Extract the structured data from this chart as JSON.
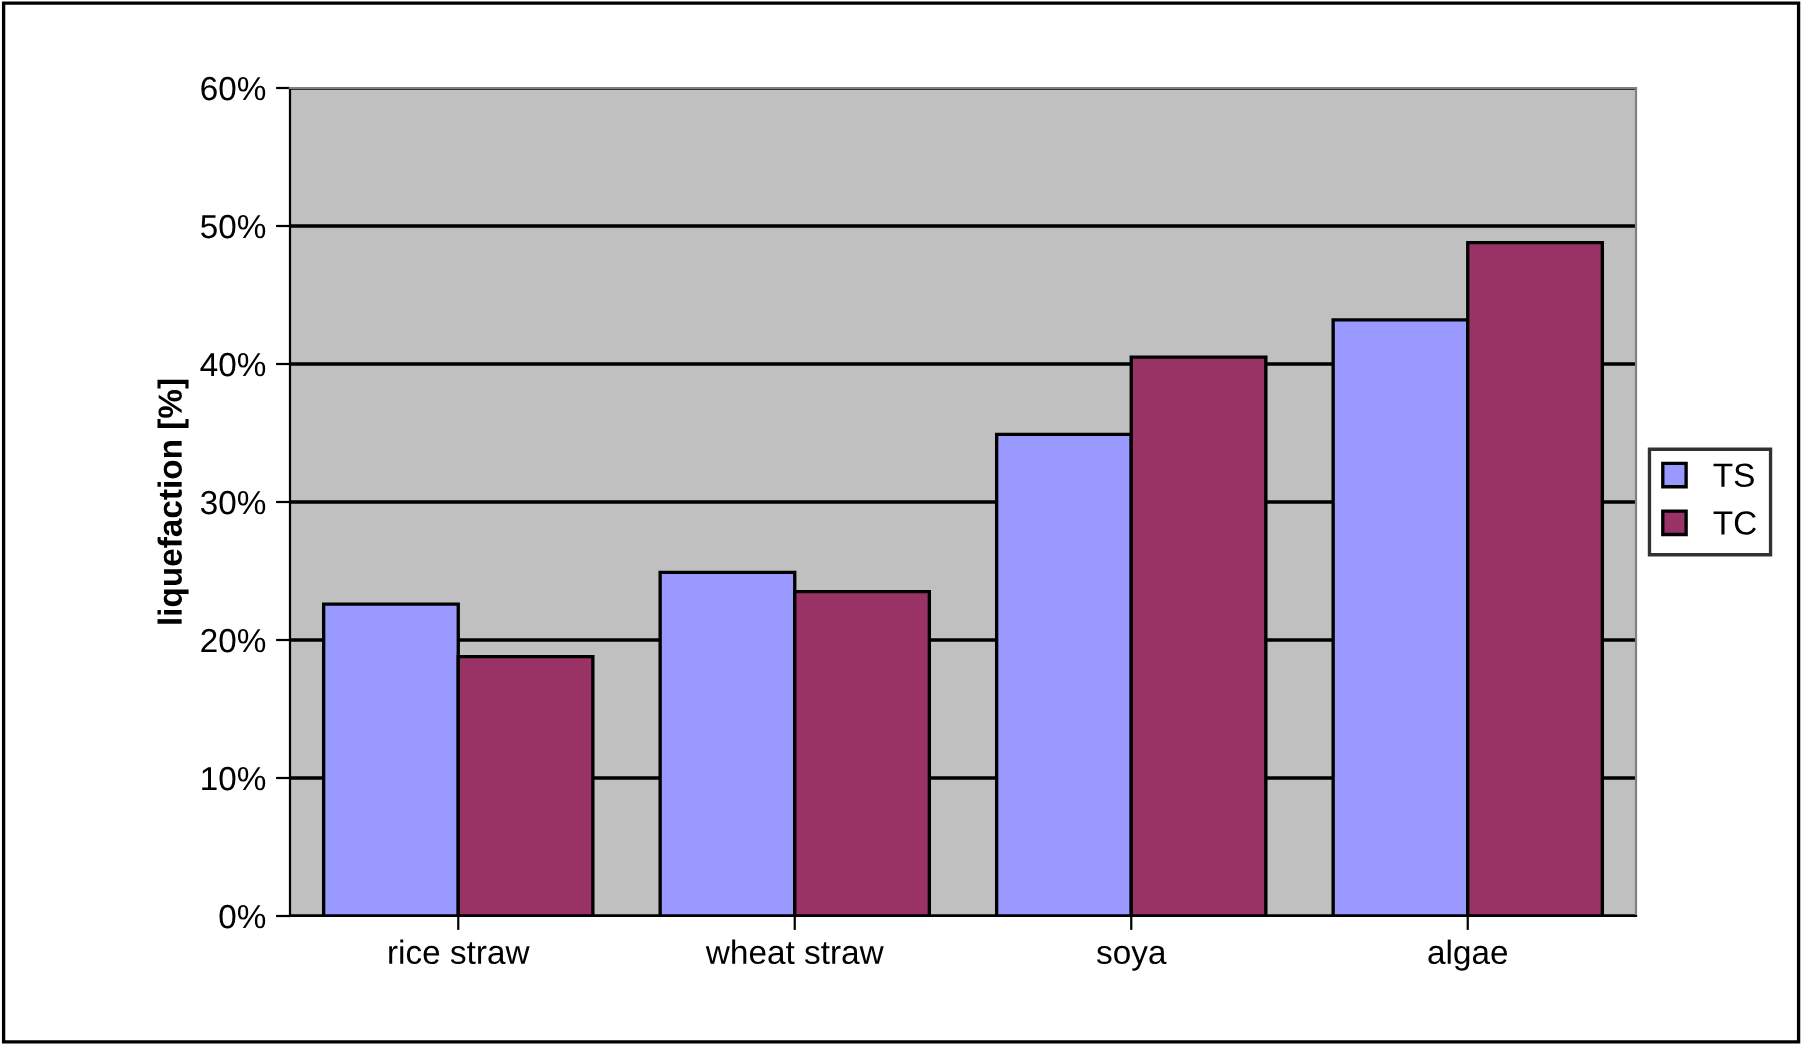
{
  "chart_data": {
    "type": "bar",
    "ylabel": "liquefaction [%]",
    "categories": [
      "rice straw",
      "wheat straw",
      "soya",
      "algae"
    ],
    "series": [
      {
        "name": "TS",
        "color": "#9999ff",
        "values": [
          22.6,
          24.9,
          34.9,
          43.2
        ]
      },
      {
        "name": "TC",
        "color": "#993366",
        "values": [
          18.8,
          23.5,
          40.5,
          48.8
        ]
      }
    ],
    "ylim": [
      0,
      60
    ],
    "yticks": [
      {
        "value": 0,
        "label": "0%"
      },
      {
        "value": 10,
        "label": "10%"
      },
      {
        "value": 20,
        "label": "20%"
      },
      {
        "value": 30,
        "label": "30%"
      },
      {
        "value": 40,
        "label": "40%"
      },
      {
        "value": 50,
        "label": "50%"
      },
      {
        "value": 60,
        "label": "60%"
      }
    ],
    "grid": "y",
    "legend": "right"
  }
}
